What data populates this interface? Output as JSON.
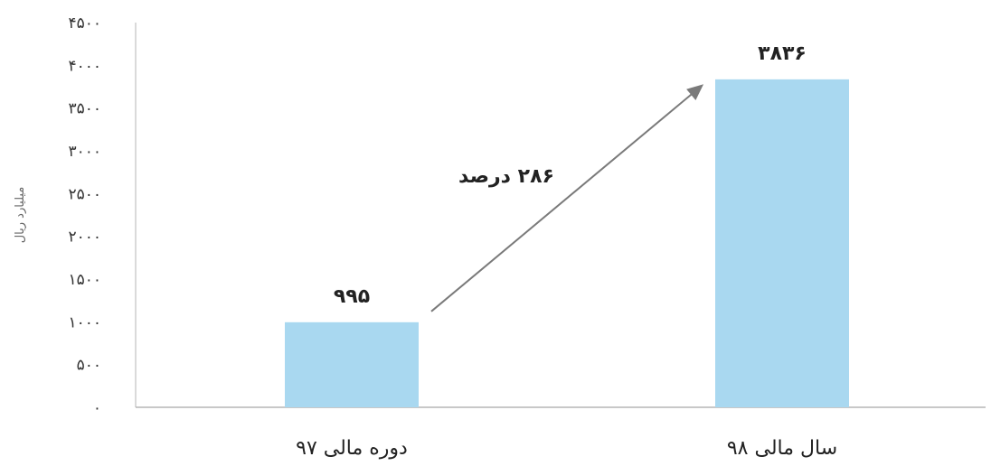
{
  "chart_data": {
    "type": "bar",
    "title": "",
    "xlabel": "",
    "ylabel": "میلیارد ریال",
    "ylim": [
      0,
      4500
    ],
    "yticks": [
      0,
      500,
      1000,
      1500,
      2000,
      2500,
      3000,
      3500,
      4000,
      4500
    ],
    "ytick_labels": [
      "۰",
      "۵۰۰",
      "۱۰۰۰",
      "۱۵۰۰",
      "۲۰۰۰",
      "۲۵۰۰",
      "۳۰۰۰",
      "۳۵۰۰",
      "۴۰۰۰",
      "۴۵۰۰"
    ],
    "categories": [
      "دوره مالی ۹۷",
      "سال مالی ۹۸"
    ],
    "values": [
      995,
      3836
    ],
    "data_labels": [
      "۹۹۵",
      "۳۸۳۶"
    ],
    "annotation": {
      "text": "۲۸۶ درصد",
      "type": "arrow",
      "from_category": 0,
      "to_category": 1
    },
    "grid": false,
    "legend": "none",
    "colors": {
      "bar": "#a9d8f0",
      "axis": "#b5b5b5",
      "arrow": "#7a7a7a"
    }
  }
}
